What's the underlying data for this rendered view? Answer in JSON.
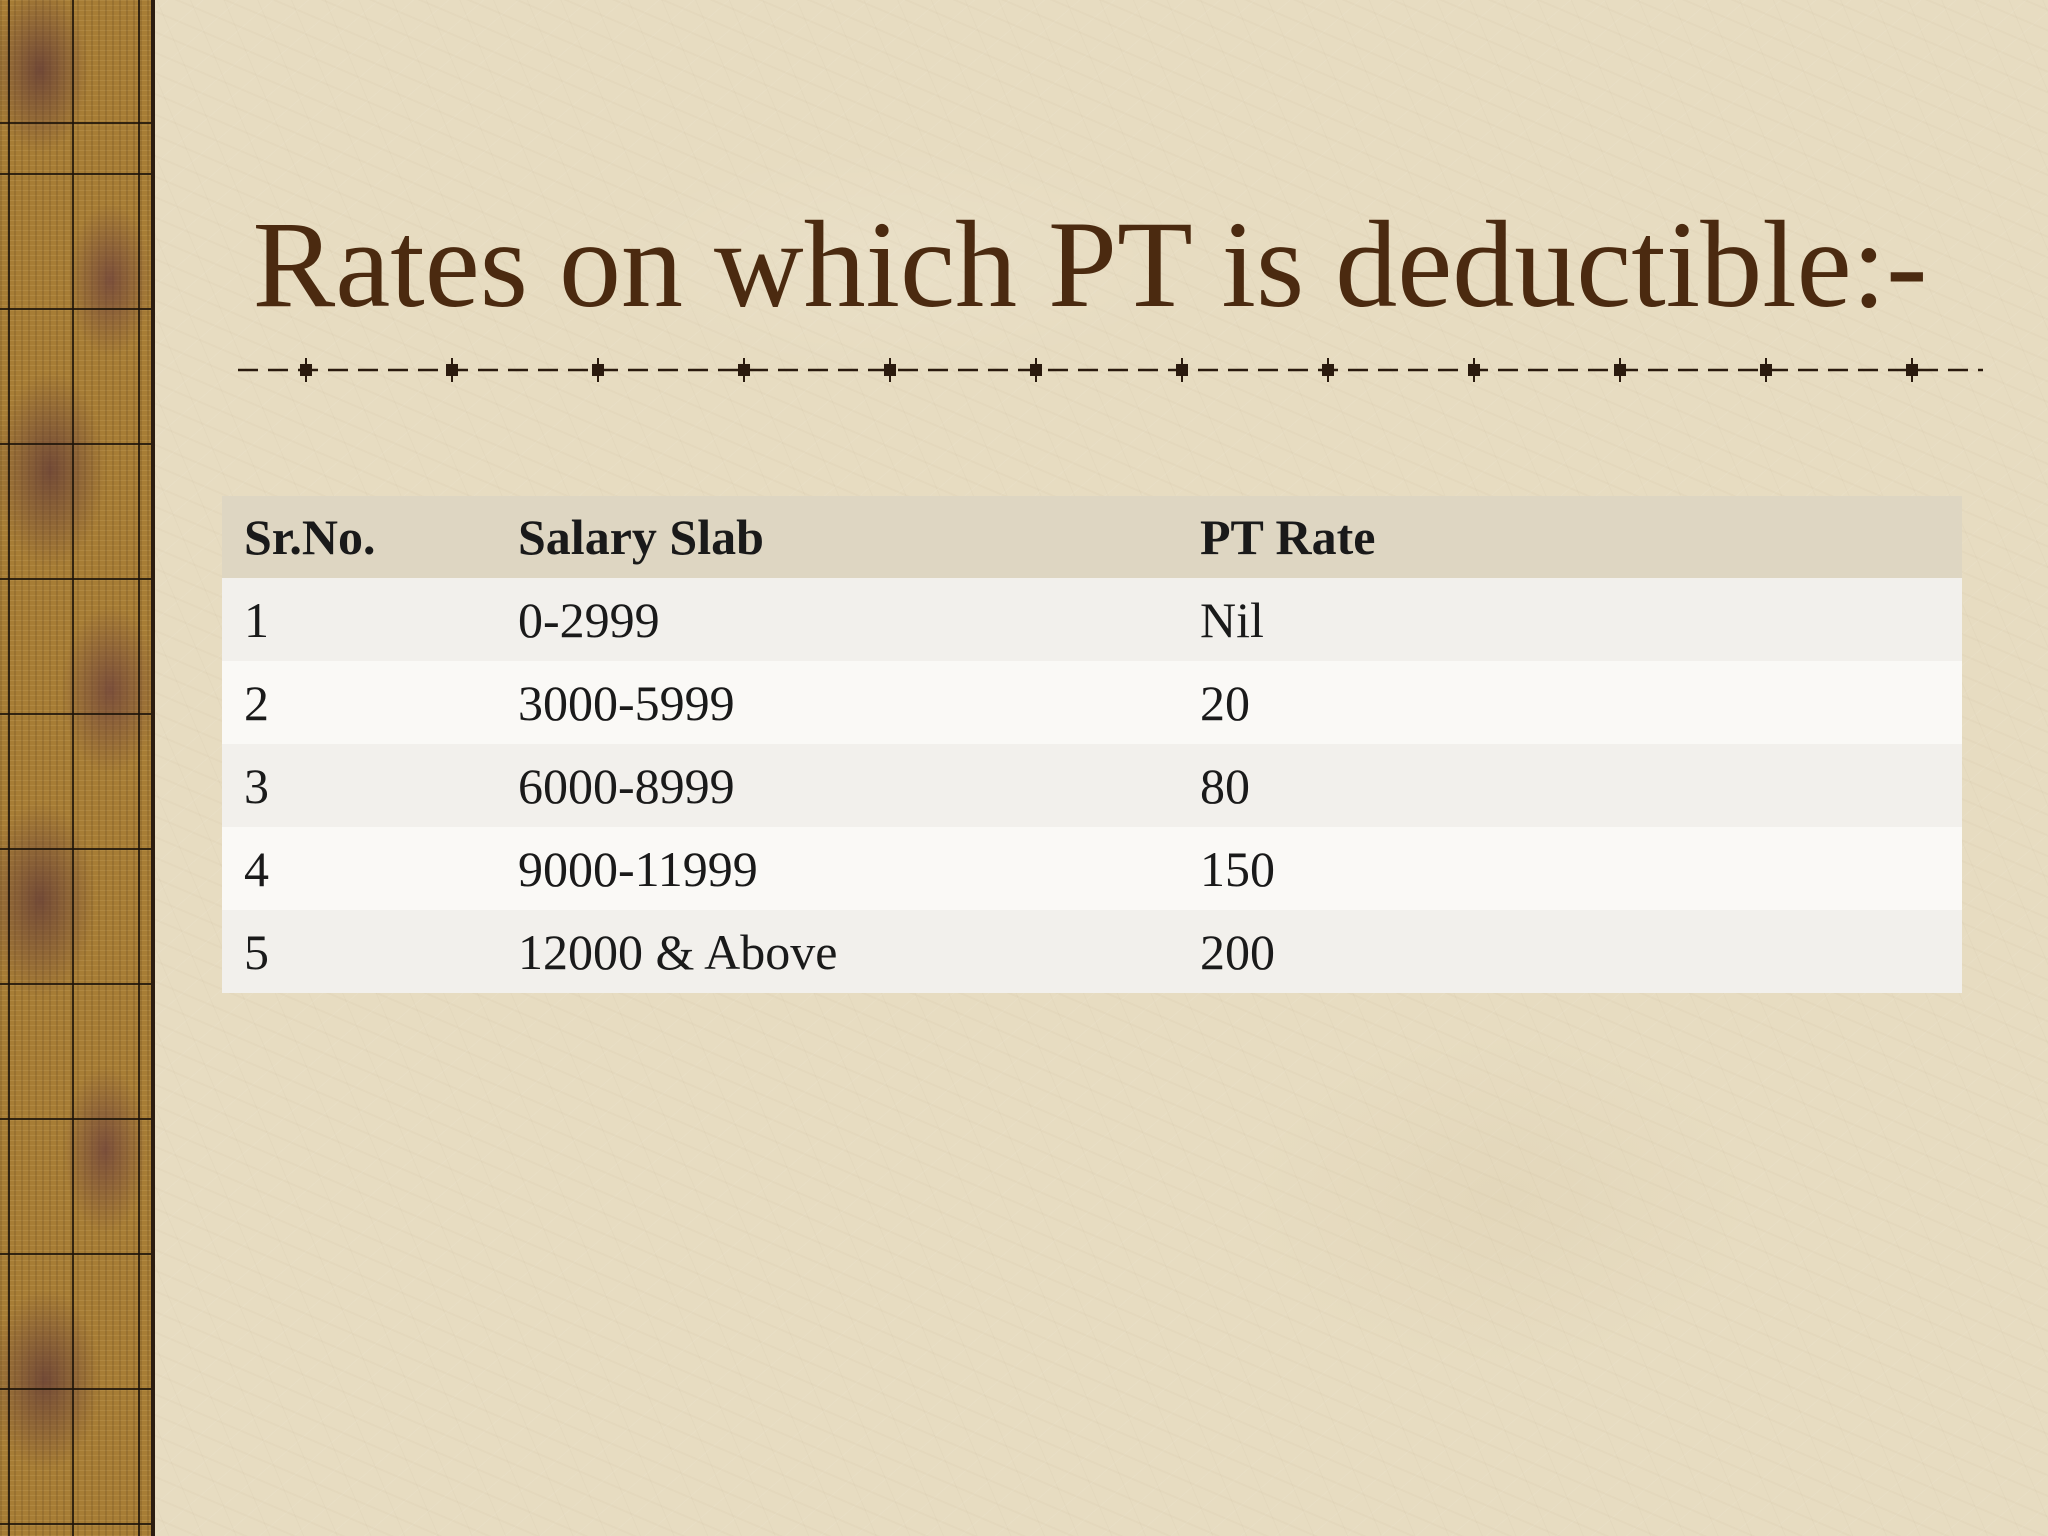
{
  "slide": {
    "title": "Rates on which PT is deductible:-",
    "colors": {
      "title": "#4b2a10",
      "background": "#e7dcc1",
      "header_row": "#ded6c2",
      "row_odd": "#f2f0ec",
      "row_even": "#faf9f6",
      "side_strip": "#a77d35"
    }
  },
  "table": {
    "headers": [
      "Sr.No.",
      "Salary Slab",
      "PT Rate"
    ],
    "rows": [
      [
        "1",
        "0-2999",
        "Nil"
      ],
      [
        "2",
        "3000-5999",
        "20"
      ],
      [
        "3",
        "6000-8999",
        "80"
      ],
      [
        "4",
        "9000-11999",
        "150"
      ],
      [
        "5",
        "12000 & Above",
        "200"
      ]
    ]
  }
}
